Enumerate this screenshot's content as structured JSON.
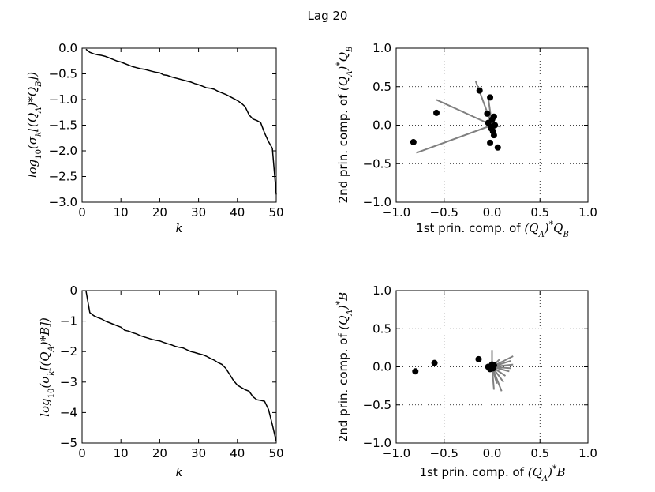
{
  "figure": {
    "title": "Lag 20"
  },
  "chart_data": [
    {
      "id": "sv-qb",
      "type": "line",
      "xlabel": "k",
      "ylabel": "log10(σk[(QA)*QB])",
      "xlim": [
        0,
        50
      ],
      "ylim": [
        -3.0,
        0.0
      ],
      "xticks": [
        0,
        10,
        20,
        30,
        40,
        50
      ],
      "yticks": [
        0.0,
        -0.5,
        -1.0,
        -1.5,
        -2.0,
        -2.5,
        -3.0
      ],
      "yticklabels": [
        "0.0",
        "−0.5",
        "−1.0",
        "−1.5",
        "−2.0",
        "−2.5",
        "−3.0"
      ],
      "grid": false,
      "series": [
        {
          "color": "#000000",
          "x": [
            1,
            2,
            3,
            4,
            5,
            6,
            7,
            8,
            9,
            10,
            11,
            12,
            13,
            14,
            15,
            16,
            17,
            18,
            19,
            20,
            21,
            22,
            23,
            24,
            25,
            26,
            27,
            28,
            29,
            30,
            31,
            32,
            33,
            34,
            35,
            36,
            37,
            38,
            39,
            40,
            41,
            42,
            43,
            44,
            45,
            46,
            47,
            48,
            49,
            50
          ],
          "values": [
            -0.02,
            -0.08,
            -0.11,
            -0.13,
            -0.14,
            -0.16,
            -0.19,
            -0.22,
            -0.25,
            -0.27,
            -0.3,
            -0.33,
            -0.36,
            -0.38,
            -0.4,
            -0.41,
            -0.43,
            -0.45,
            -0.47,
            -0.48,
            -0.52,
            -0.53,
            -0.56,
            -0.58,
            -0.6,
            -0.62,
            -0.64,
            -0.66,
            -0.69,
            -0.71,
            -0.74,
            -0.77,
            -0.78,
            -0.8,
            -0.84,
            -0.87,
            -0.9,
            -0.94,
            -0.98,
            -1.02,
            -1.07,
            -1.14,
            -1.3,
            -1.38,
            -1.41,
            -1.45,
            -1.65,
            -1.82,
            -1.95,
            -2.85
          ]
        }
      ]
    },
    {
      "id": "pc-qb",
      "type": "scatter",
      "xlabel": "1st prin. comp. of (QA)*QB",
      "ylabel": "2nd prin. comp. of (QA)*QB",
      "xlim": [
        -1.0,
        1.0
      ],
      "ylim": [
        -1.0,
        1.0
      ],
      "xticks": [
        -1.0,
        -0.5,
        0.0,
        0.5,
        1.0
      ],
      "yticks": [
        1.0,
        0.5,
        0.0,
        -0.5,
        -1.0
      ],
      "xticklabels": [
        "−1.0",
        "−0.5",
        "0.0",
        "0.5",
        "1.0"
      ],
      "yticklabels": [
        "1.0",
        "0.5",
        "0.0",
        "−0.5",
        "−1.0"
      ],
      "grid": true,
      "points": [
        {
          "x": -0.82,
          "y": -0.22
        },
        {
          "x": -0.58,
          "y": 0.16
        },
        {
          "x": -0.13,
          "y": 0.45
        },
        {
          "x": -0.02,
          "y": 0.36
        },
        {
          "x": -0.05,
          "y": 0.15
        },
        {
          "x": -0.04,
          "y": 0.03
        },
        {
          "x": 0.02,
          "y": -0.13
        },
        {
          "x": 0.06,
          "y": -0.29
        },
        {
          "x": -0.02,
          "y": -0.23
        },
        {
          "x": 0.0,
          "y": 0.07
        },
        {
          "x": -0.01,
          "y": -0.04
        },
        {
          "x": 0.02,
          "y": 0.11
        },
        {
          "x": 0.01,
          "y": -0.08
        },
        {
          "x": 0.03,
          "y": 0.0
        },
        {
          "x": 0.0,
          "y": -0.02
        }
      ],
      "vectors": [
        {
          "x": -0.79,
          "y": -0.36
        },
        {
          "x": -0.58,
          "y": 0.33
        },
        {
          "x": -0.17,
          "y": 0.57
        },
        {
          "x": -0.04,
          "y": 0.36
        },
        {
          "x": 0.09,
          "y": -0.02
        },
        {
          "x": 0.02,
          "y": -0.12
        },
        {
          "x": -0.02,
          "y": 0.13
        },
        {
          "x": 0.03,
          "y": -0.05
        }
      ]
    },
    {
      "id": "sv-b",
      "type": "line",
      "xlabel": "k",
      "ylabel": "log10(σk[(QA)*B])",
      "xlim": [
        0,
        50
      ],
      "ylim": [
        -5,
        0
      ],
      "xticks": [
        0,
        10,
        20,
        30,
        40,
        50
      ],
      "yticks": [
        0,
        -1,
        -2,
        -3,
        -4,
        -5
      ],
      "yticklabels": [
        "0",
        "−1",
        "−2",
        "−3",
        "−4",
        "−5"
      ],
      "grid": false,
      "series": [
        {
          "color": "#000000",
          "x": [
            1,
            2,
            3,
            4,
            5,
            6,
            7,
            8,
            9,
            10,
            11,
            12,
            13,
            14,
            15,
            16,
            17,
            18,
            19,
            20,
            21,
            22,
            23,
            24,
            25,
            26,
            27,
            28,
            29,
            30,
            31,
            32,
            33,
            34,
            35,
            36,
            37,
            38,
            39,
            40,
            41,
            42,
            43,
            44,
            45,
            46,
            47,
            48,
            49,
            50
          ],
          "values": [
            0.0,
            -0.72,
            -0.82,
            -0.88,
            -0.93,
            -1.0,
            -1.05,
            -1.1,
            -1.15,
            -1.2,
            -1.3,
            -1.33,
            -1.38,
            -1.42,
            -1.48,
            -1.52,
            -1.56,
            -1.6,
            -1.63,
            -1.65,
            -1.7,
            -1.74,
            -1.78,
            -1.83,
            -1.86,
            -1.88,
            -1.94,
            -2.0,
            -2.03,
            -2.07,
            -2.1,
            -2.15,
            -2.22,
            -2.28,
            -2.36,
            -2.42,
            -2.55,
            -2.75,
            -2.95,
            -3.1,
            -3.18,
            -3.25,
            -3.3,
            -3.48,
            -3.58,
            -3.6,
            -3.63,
            -3.9,
            -4.4,
            -4.95
          ]
        }
      ]
    },
    {
      "id": "pc-b",
      "type": "scatter",
      "xlabel": "1st prin. comp. of (QA)*B",
      "ylabel": "2nd prin. comp. of (QA)*B",
      "xlim": [
        -1.0,
        1.0
      ],
      "ylim": [
        -1.0,
        1.0
      ],
      "xticks": [
        -1.0,
        -0.5,
        0.0,
        0.5,
        1.0
      ],
      "yticks": [
        1.0,
        0.5,
        0.0,
        -0.5,
        -1.0
      ],
      "xticklabels": [
        "−1.0",
        "−0.5",
        "0.0",
        "0.5",
        "1.0"
      ],
      "yticklabels": [
        "1.0",
        "0.5",
        "0.0",
        "−0.5",
        "−1.0"
      ],
      "grid": true,
      "points": [
        {
          "x": -0.8,
          "y": -0.06
        },
        {
          "x": -0.6,
          "y": 0.05
        },
        {
          "x": -0.14,
          "y": 0.1
        },
        {
          "x": -0.04,
          "y": 0.0
        },
        {
          "x": -0.02,
          "y": -0.03
        },
        {
          "x": 0.0,
          "y": 0.03
        },
        {
          "x": 0.02,
          "y": 0.02
        },
        {
          "x": 0.01,
          "y": -0.02
        }
      ],
      "vectors": [
        {
          "x": 0.0,
          "y": 0.22
        },
        {
          "x": 0.22,
          "y": 0.14
        },
        {
          "x": 0.2,
          "y": 0.08
        },
        {
          "x": 0.22,
          "y": 0.03
        },
        {
          "x": 0.2,
          "y": -0.02
        },
        {
          "x": 0.18,
          "y": -0.06
        },
        {
          "x": 0.14,
          "y": -0.12
        },
        {
          "x": 0.12,
          "y": -0.2
        },
        {
          "x": 0.1,
          "y": -0.32
        },
        {
          "x": 0.05,
          "y": -0.22
        },
        {
          "x": 0.02,
          "y": -0.3
        },
        {
          "x": 0.08,
          "y": 0.1
        }
      ]
    }
  ]
}
